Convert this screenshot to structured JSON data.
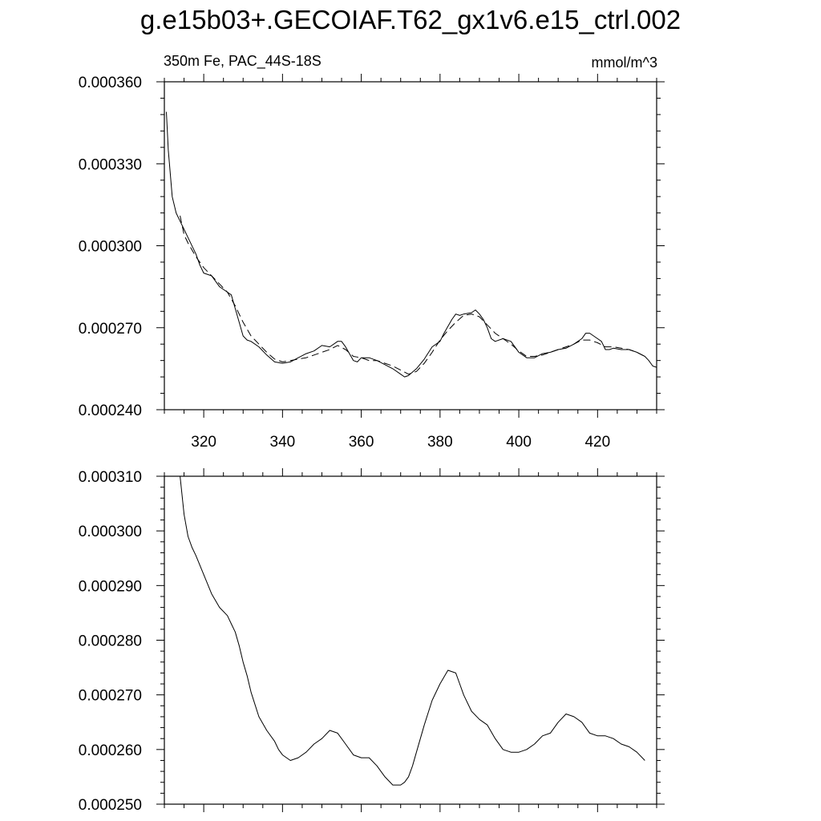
{
  "title": "g.e15b03+.GECOIAF.T62_gx1v6.e15_ctrl.002",
  "subtitle_left": "350m Fe, PAC_44S-18S",
  "subtitle_right": "mmol/m^3",
  "chart_data": [
    {
      "type": "line",
      "title": "g.e15b03+.GECOIAF.T62_gx1v6.e15_ctrl.002",
      "subtitle": "350m Fe, PAC_44S-18S",
      "units": "mmol/m^3",
      "xlim": [
        310,
        435
      ],
      "ylim": [
        0.00024,
        0.00036
      ],
      "x_ticks": [
        320,
        340,
        360,
        380,
        400,
        420
      ],
      "x_tick_labels": [
        "320",
        "340",
        "360",
        "380",
        "400",
        "420"
      ],
      "y_ticks": [
        0.00024,
        0.00027,
        0.0003,
        0.00033,
        0.00036
      ],
      "y_tick_labels": [
        "0.000240",
        "0.000270",
        "0.000300",
        "0.000330",
        "0.000360"
      ],
      "series": [
        {
          "style": "solid",
          "x": [
            310.5,
            311,
            312,
            313,
            314,
            315,
            316,
            318,
            319,
            320,
            322,
            323,
            324,
            326,
            327,
            328,
            329,
            330,
            331,
            332,
            334,
            336,
            338,
            340,
            342,
            344,
            346,
            348,
            350,
            352,
            354,
            355,
            356,
            358,
            359,
            360,
            362,
            364,
            366,
            368,
            370,
            371,
            372,
            374,
            376,
            378,
            380,
            381,
            383,
            384,
            385,
            386,
            388,
            389,
            390,
            391,
            392,
            393,
            394,
            396,
            398,
            400,
            402,
            404,
            406,
            408,
            410,
            412,
            414,
            416,
            417,
            418,
            419,
            420,
            421,
            422,
            423,
            424,
            426,
            428,
            430,
            432,
            433,
            434,
            435
          ],
          "y": [
            0.000349,
            0.000335,
            0.000318,
            0.000312,
            0.000309,
            0.000306,
            0.000303,
            0.000297,
            0.000293,
            0.00029,
            0.000289,
            0.000287,
            0.000285,
            0.000283,
            0.000282,
            0.000277,
            0.000272,
            0.000267,
            0.0002655,
            0.000265,
            0.000263,
            0.00026,
            0.0002575,
            0.000257,
            0.0002575,
            0.000259,
            0.0002605,
            0.0002615,
            0.0002635,
            0.000263,
            0.000265,
            0.000265,
            0.000263,
            0.000258,
            0.0002575,
            0.000259,
            0.000259,
            0.000258,
            0.0002565,
            0.000255,
            0.000253,
            0.000252,
            0.0002525,
            0.000255,
            0.0002585,
            0.000263,
            0.000265,
            0.000268,
            0.000273,
            0.000275,
            0.0002745,
            0.000275,
            0.0002755,
            0.0002765,
            0.000275,
            0.000273,
            0.00027,
            0.000266,
            0.000265,
            0.000266,
            0.000265,
            0.000261,
            0.000259,
            0.000259,
            0.0002605,
            0.000261,
            0.000262,
            0.0002625,
            0.000264,
            0.000266,
            0.000268,
            0.000268,
            0.000267,
            0.000266,
            0.000265,
            0.000262,
            0.000262,
            0.0002625,
            0.000262,
            0.000262,
            0.000261,
            0.0002595,
            0.000258,
            0.000256,
            0.0002555
          ]
        },
        {
          "style": "dashed",
          "x": [
            314,
            315,
            316,
            318,
            320,
            322,
            324,
            326,
            328,
            330,
            332,
            334,
            336,
            338,
            340,
            342,
            344,
            346,
            348,
            350,
            352,
            354,
            356,
            358,
            360,
            362,
            364,
            366,
            368,
            370,
            372,
            374,
            376,
            378,
            380,
            382,
            384,
            386,
            388,
            390,
            392,
            394,
            396,
            398,
            400,
            402,
            404,
            406,
            408,
            410,
            412,
            414,
            416,
            418,
            420,
            422,
            424,
            426,
            428,
            430,
            432
          ],
          "y": [
            0.000311,
            0.000304,
            0.000301,
            0.000296,
            0.000292,
            0.000289,
            0.000286,
            0.000283,
            0.000278,
            0.000272,
            0.000267,
            0.000264,
            0.000261,
            0.0002585,
            0.0002575,
            0.000258,
            0.0002585,
            0.000259,
            0.00026,
            0.000261,
            0.000262,
            0.0002635,
            0.000262,
            0.0002595,
            0.000259,
            0.000258,
            0.000258,
            0.000257,
            0.000256,
            0.0002545,
            0.000253,
            0.000254,
            0.000257,
            0.000261,
            0.0002655,
            0.000269,
            0.000272,
            0.0002745,
            0.000275,
            0.000274,
            0.000271,
            0.000268,
            0.000266,
            0.000264,
            0.0002615,
            0.0002595,
            0.0002595,
            0.00026,
            0.000261,
            0.000262,
            0.000263,
            0.000264,
            0.0002655,
            0.0002655,
            0.0002645,
            0.000263,
            0.000263,
            0.0002625,
            0.000262,
            0.000261,
            0.0002595
          ]
        }
      ]
    },
    {
      "type": "line",
      "xlim": [
        310,
        435
      ],
      "ylim": [
        0.00025,
        0.00031
      ],
      "x_ticks": [
        320,
        340,
        360,
        380,
        400,
        420
      ],
      "y_ticks": [
        0.00025,
        0.00026,
        0.00027,
        0.00028,
        0.00029,
        0.0003,
        0.00031
      ],
      "y_tick_labels": [
        "0.000250",
        "0.000260",
        "0.000270",
        "0.000280",
        "0.000290",
        "0.000300",
        "0.000310"
      ],
      "series": [
        {
          "style": "solid",
          "x": [
            314,
            315,
            316,
            317,
            318,
            320,
            322,
            324,
            326,
            327,
            328,
            329,
            330,
            331,
            332,
            334,
            336,
            338,
            339,
            340,
            342,
            344,
            346,
            348,
            350,
            352,
            354,
            356,
            358,
            360,
            362,
            364,
            366,
            368,
            370,
            371,
            372,
            373,
            374,
            376,
            378,
            380,
            382,
            384,
            385,
            386,
            388,
            390,
            392,
            394,
            396,
            398,
            400,
            402,
            404,
            406,
            408,
            410,
            412,
            414,
            416,
            418,
            420,
            422,
            424,
            426,
            428,
            430,
            432
          ],
          "y": [
            0.00031,
            0.000303,
            0.000299,
            0.000297,
            0.0002955,
            0.000292,
            0.0002885,
            0.000286,
            0.0002845,
            0.000283,
            0.0002815,
            0.000279,
            0.000276,
            0.0002735,
            0.0002705,
            0.000266,
            0.0002635,
            0.0002615,
            0.00026,
            0.000259,
            0.000258,
            0.0002585,
            0.0002595,
            0.000261,
            0.000262,
            0.0002635,
            0.000263,
            0.000261,
            0.000259,
            0.0002585,
            0.0002585,
            0.000257,
            0.000255,
            0.0002535,
            0.0002535,
            0.000254,
            0.000255,
            0.000257,
            0.0002595,
            0.0002645,
            0.000269,
            0.000272,
            0.0002745,
            0.000274,
            0.000272,
            0.00027,
            0.000267,
            0.0002655,
            0.0002645,
            0.000262,
            0.00026,
            0.0002595,
            0.0002595,
            0.00026,
            0.000261,
            0.0002625,
            0.000263,
            0.000265,
            0.0002665,
            0.000266,
            0.000265,
            0.000263,
            0.0002625,
            0.0002625,
            0.000262,
            0.000261,
            0.0002605,
            0.0002595,
            0.000258
          ]
        }
      ]
    }
  ]
}
